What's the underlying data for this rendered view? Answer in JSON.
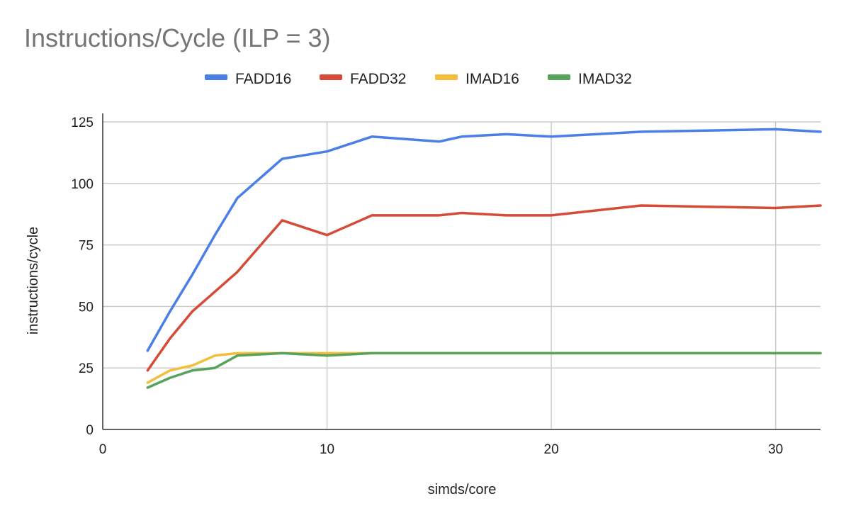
{
  "chart_data": {
    "type": "line",
    "title": "Instructions/Cycle (ILP = 3)",
    "xlabel": "simds/core",
    "ylabel": "instructions/cycle",
    "xlim": [
      0,
      32
    ],
    "ylim": [
      0,
      125
    ],
    "x_ticks": [
      "0",
      "10",
      "20",
      "30"
    ],
    "y_ticks": [
      "0",
      "25",
      "50",
      "75",
      "100",
      "125"
    ],
    "x_tick_values": [
      0,
      10,
      20,
      30
    ],
    "y_tick_values": [
      0,
      25,
      50,
      75,
      100,
      125
    ],
    "grid": true,
    "legend_position": "top-center",
    "series": [
      {
        "name": "FADD16",
        "color": "#4a7fe8",
        "points": [
          [
            2,
            32
          ],
          [
            3,
            48
          ],
          [
            4,
            63
          ],
          [
            5,
            79
          ],
          [
            6,
            94
          ],
          [
            8,
            110
          ],
          [
            10,
            113
          ],
          [
            12,
            119
          ],
          [
            15,
            117
          ],
          [
            16,
            119
          ],
          [
            18,
            120
          ],
          [
            20,
            119
          ],
          [
            24,
            121
          ],
          [
            30,
            122
          ],
          [
            32,
            121
          ]
        ]
      },
      {
        "name": "FADD32",
        "color": "#d64a38",
        "points": [
          [
            2,
            24
          ],
          [
            3,
            37
          ],
          [
            4,
            48
          ],
          [
            5,
            56
          ],
          [
            6,
            64
          ],
          [
            8,
            85
          ],
          [
            10,
            79
          ],
          [
            12,
            87
          ],
          [
            15,
            87
          ],
          [
            16,
            88
          ],
          [
            18,
            87
          ],
          [
            20,
            87
          ],
          [
            24,
            91
          ],
          [
            30,
            90
          ],
          [
            32,
            91
          ]
        ]
      },
      {
        "name": "IMAD16",
        "color": "#f3bf3a",
        "points": [
          [
            2,
            19
          ],
          [
            3,
            24
          ],
          [
            4,
            26
          ],
          [
            5,
            30
          ],
          [
            6,
            31
          ],
          [
            8,
            31
          ],
          [
            10,
            31
          ],
          [
            12,
            31
          ],
          [
            15,
            31
          ],
          [
            16,
            31
          ],
          [
            18,
            31
          ],
          [
            20,
            31
          ],
          [
            24,
            31
          ],
          [
            30,
            31
          ],
          [
            32,
            31
          ]
        ]
      },
      {
        "name": "IMAD32",
        "color": "#57a35b",
        "points": [
          [
            2,
            17
          ],
          [
            3,
            21
          ],
          [
            4,
            24
          ],
          [
            5,
            25
          ],
          [
            6,
            30
          ],
          [
            8,
            31
          ],
          [
            10,
            30
          ],
          [
            12,
            31
          ],
          [
            15,
            31
          ],
          [
            16,
            31
          ],
          [
            18,
            31
          ],
          [
            20,
            31
          ],
          [
            24,
            31
          ],
          [
            30,
            31
          ],
          [
            32,
            31
          ]
        ]
      }
    ]
  },
  "colors": {
    "grid": "#cccccc",
    "axis": "#333333",
    "title": "#757575"
  }
}
